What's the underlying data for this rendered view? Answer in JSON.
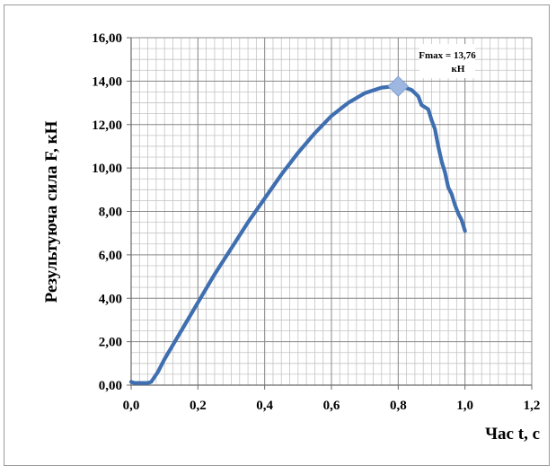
{
  "chart_data": {
    "type": "line",
    "title": "",
    "xlabel": "Час t, с",
    "ylabel": "Результуюча сила F, кН",
    "xlim": [
      0,
      1.2
    ],
    "ylim": [
      0,
      16
    ],
    "x_ticks": [
      0,
      0.2,
      0.4,
      0.6,
      0.8,
      1.0,
      1.2
    ],
    "x_tick_labels": [
      "0,0",
      "0,2",
      "0,4",
      "0,6",
      "0,8",
      "1,0",
      "1,2"
    ],
    "y_ticks": [
      0,
      2,
      4,
      6,
      8,
      10,
      12,
      14,
      16
    ],
    "y_tick_labels": [
      "0,00",
      "2,00",
      "4,00",
      "6,00",
      "8,00",
      "10,00",
      "12,00",
      "14,00",
      "16,00"
    ],
    "grid": true,
    "minor_grid": true,
    "series_color": "#3f6fb0",
    "marker_color": "#9db7e0",
    "series": [
      {
        "name": "",
        "x": [
          0.0,
          0.01,
          0.03,
          0.05,
          0.06,
          0.08,
          0.1,
          0.15,
          0.2,
          0.25,
          0.3,
          0.35,
          0.4,
          0.45,
          0.5,
          0.55,
          0.6,
          0.65,
          0.7,
          0.72,
          0.75,
          0.78,
          0.8,
          0.82,
          0.84,
          0.86,
          0.87,
          0.88,
          0.89,
          0.9,
          0.91,
          0.92,
          0.93,
          0.94,
          0.95,
          0.96,
          0.97,
          0.98,
          0.99,
          1.0
        ],
        "y": [
          0.15,
          0.1,
          0.1,
          0.1,
          0.15,
          0.6,
          1.2,
          2.5,
          3.8,
          5.1,
          6.3,
          7.5,
          8.6,
          9.7,
          10.7,
          11.6,
          12.4,
          13.0,
          13.45,
          13.55,
          13.7,
          13.75,
          13.76,
          13.7,
          13.6,
          13.3,
          12.9,
          12.8,
          12.7,
          12.2,
          11.8,
          11.0,
          10.3,
          9.8,
          9.1,
          8.8,
          8.3,
          7.9,
          7.6,
          7.1
        ]
      }
    ],
    "max_point": {
      "x": 0.8,
      "y": 13.76
    },
    "annotation": {
      "line1": "Fmax = 13,76",
      "line2": "кН"
    }
  }
}
